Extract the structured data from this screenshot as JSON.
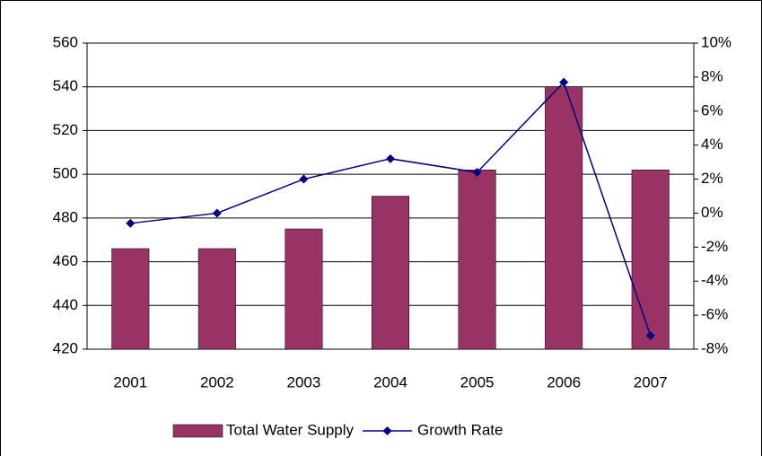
{
  "chart_data": {
    "type": "bar_line",
    "categories": [
      "2001",
      "2002",
      "2003",
      "2004",
      "2005",
      "2006",
      "2007"
    ],
    "series": [
      {
        "name": "Total Water Supply",
        "type": "bar",
        "color": "#993366",
        "values": [
          466,
          466,
          475,
          490,
          502,
          540,
          502
        ]
      },
      {
        "name": "Growth Rate",
        "type": "line",
        "color": "#000080",
        "axis": "y2",
        "values": [
          -0.6,
          0,
          2.0,
          3.2,
          2.4,
          7.7,
          -7.2
        ]
      }
    ],
    "ylim": [
      420,
      560
    ],
    "yticks": [
      420,
      440,
      460,
      480,
      500,
      520,
      540,
      560
    ],
    "y2lim": [
      -8,
      10
    ],
    "y2ticks": [
      {
        "value": -8,
        "label": "-8%"
      },
      {
        "value": -6,
        "label": "-6%"
      },
      {
        "value": -4,
        "label": "-4%"
      },
      {
        "value": -2,
        "label": "-2%"
      },
      {
        "value": 0,
        "label": "0%"
      },
      {
        "value": 2,
        "label": "2%"
      },
      {
        "value": 4,
        "label": "4%"
      },
      {
        "value": 6,
        "label": "6%"
      },
      {
        "value": 8,
        "label": "8%"
      },
      {
        "value": 10,
        "label": "10%"
      }
    ],
    "grid": true,
    "legend": "bottom"
  }
}
